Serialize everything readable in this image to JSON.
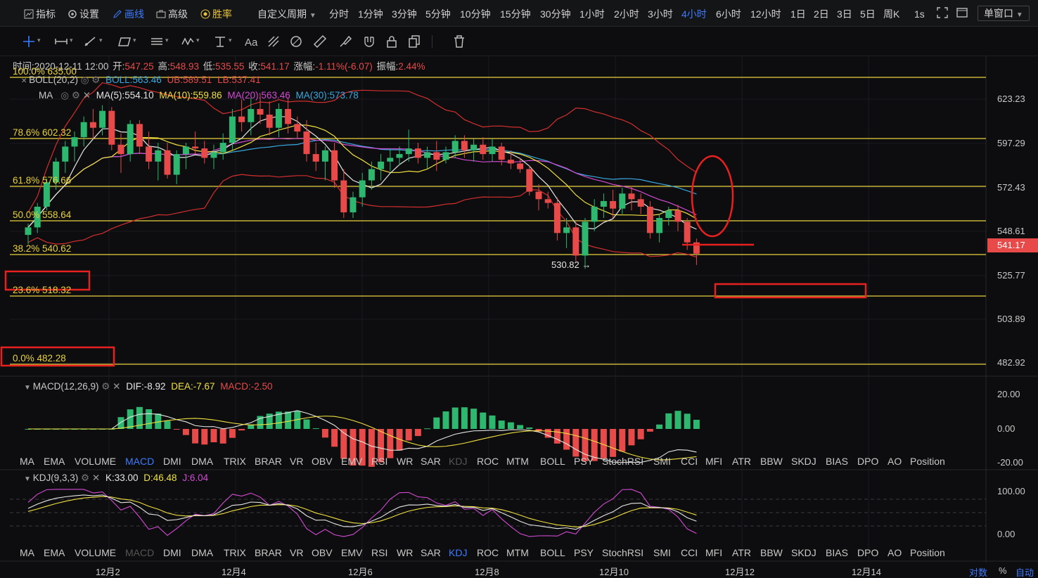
{
  "toolbar": {
    "indicators": "指标",
    "settings": "设置",
    "draw": "画线",
    "advanced": "高级",
    "winrate": "胜率",
    "custom_period": "自定义周期",
    "periods": [
      "分时",
      "1分钟",
      "3分钟",
      "5分钟",
      "10分钟",
      "15分钟",
      "30分钟",
      "1小时",
      "2小时",
      "3小时",
      "4小时",
      "6小时",
      "12小时",
      "1日",
      "2日",
      "3日",
      "5日",
      "周K"
    ],
    "active_period": "4小时",
    "interval": "1s",
    "window": "单窗口"
  },
  "drawing_tools": [
    "crosshair-icon",
    "horizontal-line-icon",
    "trend-line-icon",
    "rectangle-icon",
    "parallel-channel-icon",
    "wave-icon",
    "fibonacci-icon",
    "text-icon",
    "pattern-icon",
    "measure-icon",
    "ruler-icon",
    "brush-icon",
    "magnet-icon",
    "lock-icon",
    "copy-icon",
    "trash-icon"
  ],
  "info": {
    "time_label": "时间:",
    "time": "2020-12-11 12:00",
    "open_label": "开:",
    "open": "547.25",
    "high_label": "高:",
    "high": "548.93",
    "low_label": "低:",
    "low": "535.55",
    "close_label": "收:",
    "close": "541.17",
    "change_label": "涨幅:",
    "change": "-1.11%(-6.07)",
    "amp_label": "振幅:",
    "amp": "2.44%"
  },
  "boll": {
    "name": "BOLL(20,2)",
    "mid": "BOLL:563.46",
    "ub": "UB:589.51",
    "lb": "LB:537.41"
  },
  "ma": {
    "name": "MA",
    "ma5": "MA(5):554.10",
    "ma10": "MA(10):559.86",
    "ma20": "MA(20):563.46",
    "ma30": "MA(30):573.78"
  },
  "fib_levels": [
    {
      "label": "100.0% 635.00",
      "price": 635.0
    },
    {
      "label": "78.6% 602.32",
      "price": 602.32
    },
    {
      "label": "61.8% 576.66",
      "price": 576.66
    },
    {
      "label": "50.0% 558.64",
      "price": 558.64
    },
    {
      "label": "38.2% 540.62",
      "price": 540.62
    },
    {
      "label": "23.6% 518.32",
      "price": 518.32
    },
    {
      "label": "0.0% 482.28",
      "price": 482.28
    }
  ],
  "price_axis": [
    "623.23",
    "597.29",
    "572.43",
    "548.61",
    "525.77",
    "503.89",
    "482.92"
  ],
  "current_price": "541.17",
  "low_marker": "530.82",
  "macd": {
    "name": "MACD(12,26,9)",
    "dif": "DIF:-8.92",
    "dea": "DEA:-7.67",
    "macd": "MACD:-2.50",
    "axis": [
      "20.00",
      "0.00",
      "-20.00"
    ]
  },
  "kdj": {
    "name": "KDJ(9,3,3)",
    "k": "K:33.00",
    "d": "D:46.48",
    "j": "J:6.04",
    "axis": [
      "100.00",
      "0.00"
    ]
  },
  "indicator_tabs": [
    "MA",
    "EMA",
    "VOLUME",
    "MACD",
    "DMI",
    "DMA",
    "TRIX",
    "BRAR",
    "VR",
    "OBV",
    "EMV",
    "RSI",
    "WR",
    "SAR",
    "KDJ",
    "ROC",
    "MTM",
    "BOLL",
    "PSY",
    "StochRSI",
    "SMI",
    "CCI",
    "MFI",
    "ATR",
    "BBW",
    "SKDJ",
    "BIAS",
    "DPO",
    "AO",
    "Position"
  ],
  "x_axis": [
    "12月2",
    "12月4",
    "12月6",
    "12月8",
    "12月10",
    "12月12",
    "12月14"
  ],
  "bottom_right": {
    "log": "对数",
    "percent": "%",
    "auto": "自动"
  },
  "colors": {
    "up": "#2eb86f",
    "down": "#e84a4a",
    "accent": "#3d7bff",
    "fib": "#e9d23c",
    "ma5": "#e6e6e6",
    "ma10": "#f0e040",
    "ma20": "#d34bd3",
    "ma30": "#3aa8e0",
    "boll": "#d42f2f"
  },
  "chart_data": {
    "type": "candlestick",
    "period": "4小时",
    "ylim": [
      470,
      645
    ],
    "candles": [
      [
        551,
        557,
        546,
        555
      ],
      [
        555,
        568,
        552,
        566
      ],
      [
        566,
        581,
        564,
        579
      ],
      [
        579,
        592,
        575,
        590
      ],
      [
        590,
        601,
        584,
        598
      ],
      [
        598,
        606,
        590,
        603
      ],
      [
        603,
        614,
        598,
        611
      ],
      [
        611,
        618,
        602,
        608
      ],
      [
        608,
        620,
        604,
        617
      ],
      [
        617,
        619,
        596,
        599
      ],
      [
        599,
        605,
        584,
        594
      ],
      [
        594,
        612,
        590,
        610
      ],
      [
        610,
        612,
        594,
        598
      ],
      [
        598,
        606,
        586,
        590
      ],
      [
        590,
        600,
        580,
        596
      ],
      [
        596,
        600,
        581,
        583
      ],
      [
        583,
        596,
        578,
        594
      ],
      [
        594,
        600,
        586,
        598
      ],
      [
        598,
        606,
        594,
        597
      ],
      [
        597,
        601,
        589,
        592
      ],
      [
        592,
        599,
        586,
        595
      ],
      [
        595,
        605,
        591,
        600
      ],
      [
        600,
        618,
        596,
        614
      ],
      [
        614,
        623,
        606,
        611
      ],
      [
        611,
        624,
        604,
        618
      ],
      [
        618,
        626,
        610,
        615
      ],
      [
        615,
        622,
        604,
        608
      ],
      [
        608,
        621,
        603,
        618
      ],
      [
        618,
        624,
        605,
        610
      ],
      [
        610,
        614,
        602,
        606
      ],
      [
        606,
        612,
        590,
        594
      ],
      [
        594,
        600,
        585,
        590
      ],
      [
        590,
        598,
        580,
        596
      ],
      [
        596,
        600,
        576,
        580
      ],
      [
        580,
        586,
        560,
        563
      ],
      [
        563,
        574,
        560,
        571
      ],
      [
        571,
        584,
        566,
        580
      ],
      [
        580,
        590,
        575,
        586
      ],
      [
        586,
        594,
        580,
        590
      ],
      [
        590,
        597,
        585,
        592
      ],
      [
        592,
        598,
        588,
        594
      ],
      [
        594,
        607,
        590,
        597
      ],
      [
        597,
        600,
        589,
        592
      ],
      [
        592,
        598,
        586,
        595
      ],
      [
        595,
        601,
        585,
        591
      ],
      [
        591,
        598,
        589,
        595
      ],
      [
        595,
        604,
        592,
        601
      ],
      [
        601,
        604,
        592,
        596
      ],
      [
        596,
        602,
        590,
        599
      ],
      [
        599,
        603,
        591,
        594
      ],
      [
        594,
        602,
        590,
        598
      ],
      [
        598,
        600,
        588,
        591
      ],
      [
        591,
        596,
        586,
        589
      ],
      [
        589,
        592,
        584,
        586
      ],
      [
        586,
        588,
        572,
        574
      ],
      [
        574,
        578,
        564,
        570
      ],
      [
        570,
        574,
        565,
        568
      ],
      [
        568,
        571,
        548,
        552
      ],
      [
        552,
        560,
        544,
        555
      ],
      [
        555,
        558,
        537,
        540
      ],
      [
        540,
        560,
        533,
        558
      ],
      [
        558,
        570,
        553,
        566
      ],
      [
        566,
        573,
        560,
        569
      ],
      [
        569,
        575,
        560,
        565
      ],
      [
        565,
        576,
        562,
        573
      ],
      [
        573,
        577,
        564,
        570
      ],
      [
        570,
        573,
        562,
        566
      ],
      [
        566,
        569,
        549,
        552
      ],
      [
        552,
        562,
        547,
        560
      ],
      [
        560,
        566,
        556,
        564
      ],
      [
        564,
        567,
        553,
        558
      ],
      [
        558,
        560,
        543,
        547
      ],
      [
        547,
        549,
        535,
        541
      ]
    ],
    "macd_axis": [
      -20,
      0,
      20
    ],
    "kdj_axis": [
      0,
      100
    ]
  }
}
